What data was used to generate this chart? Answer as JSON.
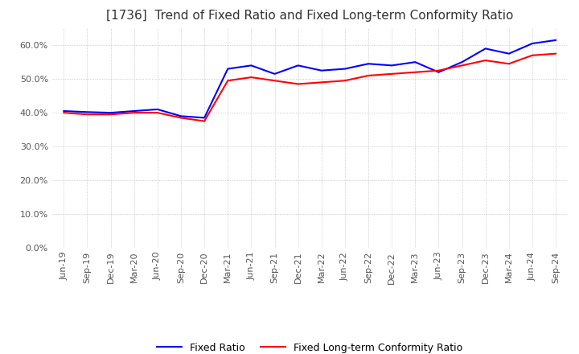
{
  "title": "[1736]  Trend of Fixed Ratio and Fixed Long-term Conformity Ratio",
  "x_labels": [
    "Jun-19",
    "Sep-19",
    "Dec-19",
    "Mar-20",
    "Jun-20",
    "Sep-20",
    "Dec-20",
    "Mar-21",
    "Jun-21",
    "Sep-21",
    "Dec-21",
    "Mar-22",
    "Jun-22",
    "Sep-22",
    "Dec-22",
    "Mar-23",
    "Jun-23",
    "Sep-23",
    "Dec-23",
    "Mar-24",
    "Jun-24",
    "Sep-24"
  ],
  "fixed_ratio": [
    40.5,
    40.2,
    40.0,
    40.5,
    41.0,
    39.0,
    38.5,
    53.0,
    54.0,
    51.5,
    54.0,
    52.5,
    53.0,
    54.5,
    54.0,
    55.0,
    52.0,
    55.0,
    59.0,
    57.5,
    60.5,
    61.5
  ],
  "fixed_lt_ratio": [
    40.0,
    39.5,
    39.5,
    40.0,
    40.0,
    38.5,
    37.5,
    49.5,
    50.5,
    49.5,
    48.5,
    49.0,
    49.5,
    51.0,
    51.5,
    52.0,
    52.5,
    54.0,
    55.5,
    54.5,
    57.0,
    57.5
  ],
  "fixed_ratio_color": "#0000ff",
  "fixed_lt_ratio_color": "#ff0000",
  "ylim": [
    0,
    65
  ],
  "yticks": [
    0,
    10,
    20,
    30,
    40,
    50,
    60
  ],
  "grid_color": "#aaaaaa",
  "background_color": "#ffffff",
  "title_fontsize": 11,
  "tick_fontsize": 8,
  "legend_labels": [
    "Fixed Ratio",
    "Fixed Long-term Conformity Ratio"
  ]
}
